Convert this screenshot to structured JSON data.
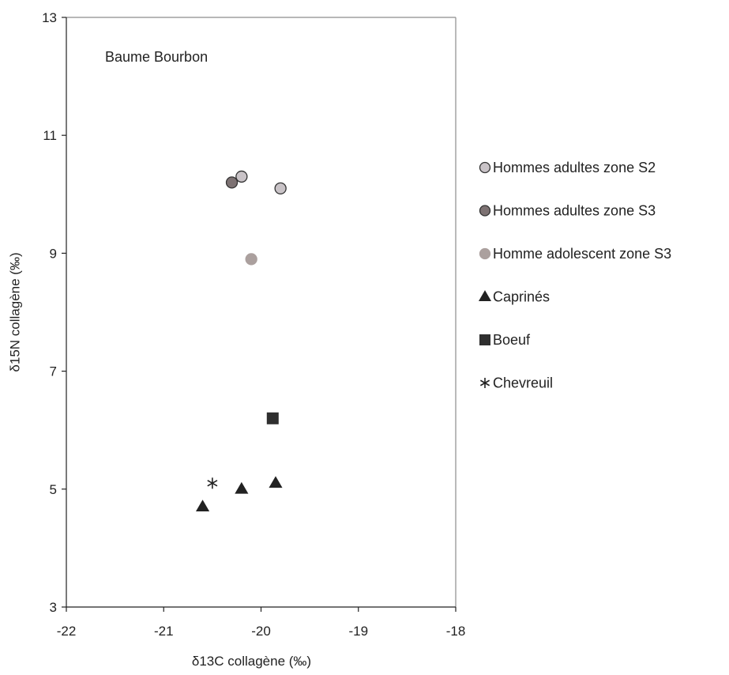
{
  "chart_data": {
    "type": "scatter",
    "title": "",
    "annotation": "Baume Bourbon",
    "xlabel": "δ13C collagène (‰)",
    "ylabel": "δ15N collagène (‰)",
    "xlim": [
      -22,
      -18
    ],
    "ylim": [
      3,
      13
    ],
    "xticks": [
      -22,
      -21,
      -20,
      -19,
      -18
    ],
    "yticks": [
      3,
      5,
      7,
      9,
      11,
      13
    ],
    "grid": false,
    "legend_position": "right",
    "series": [
      {
        "name": "Hommes adultes zone S2",
        "marker": "circle",
        "color": "#c9c3c7",
        "stroke": "#333333",
        "points": [
          {
            "x": -20.2,
            "y": 10.3
          },
          {
            "x": -19.8,
            "y": 10.1
          }
        ]
      },
      {
        "name": "Hommes adultes zone S3",
        "marker": "circle",
        "color": "#7d7273",
        "stroke": "#333333",
        "points": [
          {
            "x": -20.3,
            "y": 10.2
          }
        ]
      },
      {
        "name": "Homme adolescent zone S3",
        "marker": "circle",
        "color": "#aba09e",
        "stroke": "#aba09e",
        "points": [
          {
            "x": -20.1,
            "y": 8.9
          }
        ]
      },
      {
        "name": "Caprinés",
        "marker": "triangle",
        "color": "#222222",
        "stroke": "#222222",
        "points": [
          {
            "x": -20.6,
            "y": 4.7
          },
          {
            "x": -20.2,
            "y": 5.0
          },
          {
            "x": -19.85,
            "y": 5.1
          }
        ]
      },
      {
        "name": "Boeuf",
        "marker": "square",
        "color": "#2f2f2f",
        "stroke": "#2f2f2f",
        "points": [
          {
            "x": -19.88,
            "y": 6.2
          }
        ]
      },
      {
        "name": "Chevreuil",
        "marker": "asterisk",
        "color": "#222222",
        "stroke": "#222222",
        "points": [
          {
            "x": -20.5,
            "y": 5.1
          }
        ]
      }
    ]
  }
}
